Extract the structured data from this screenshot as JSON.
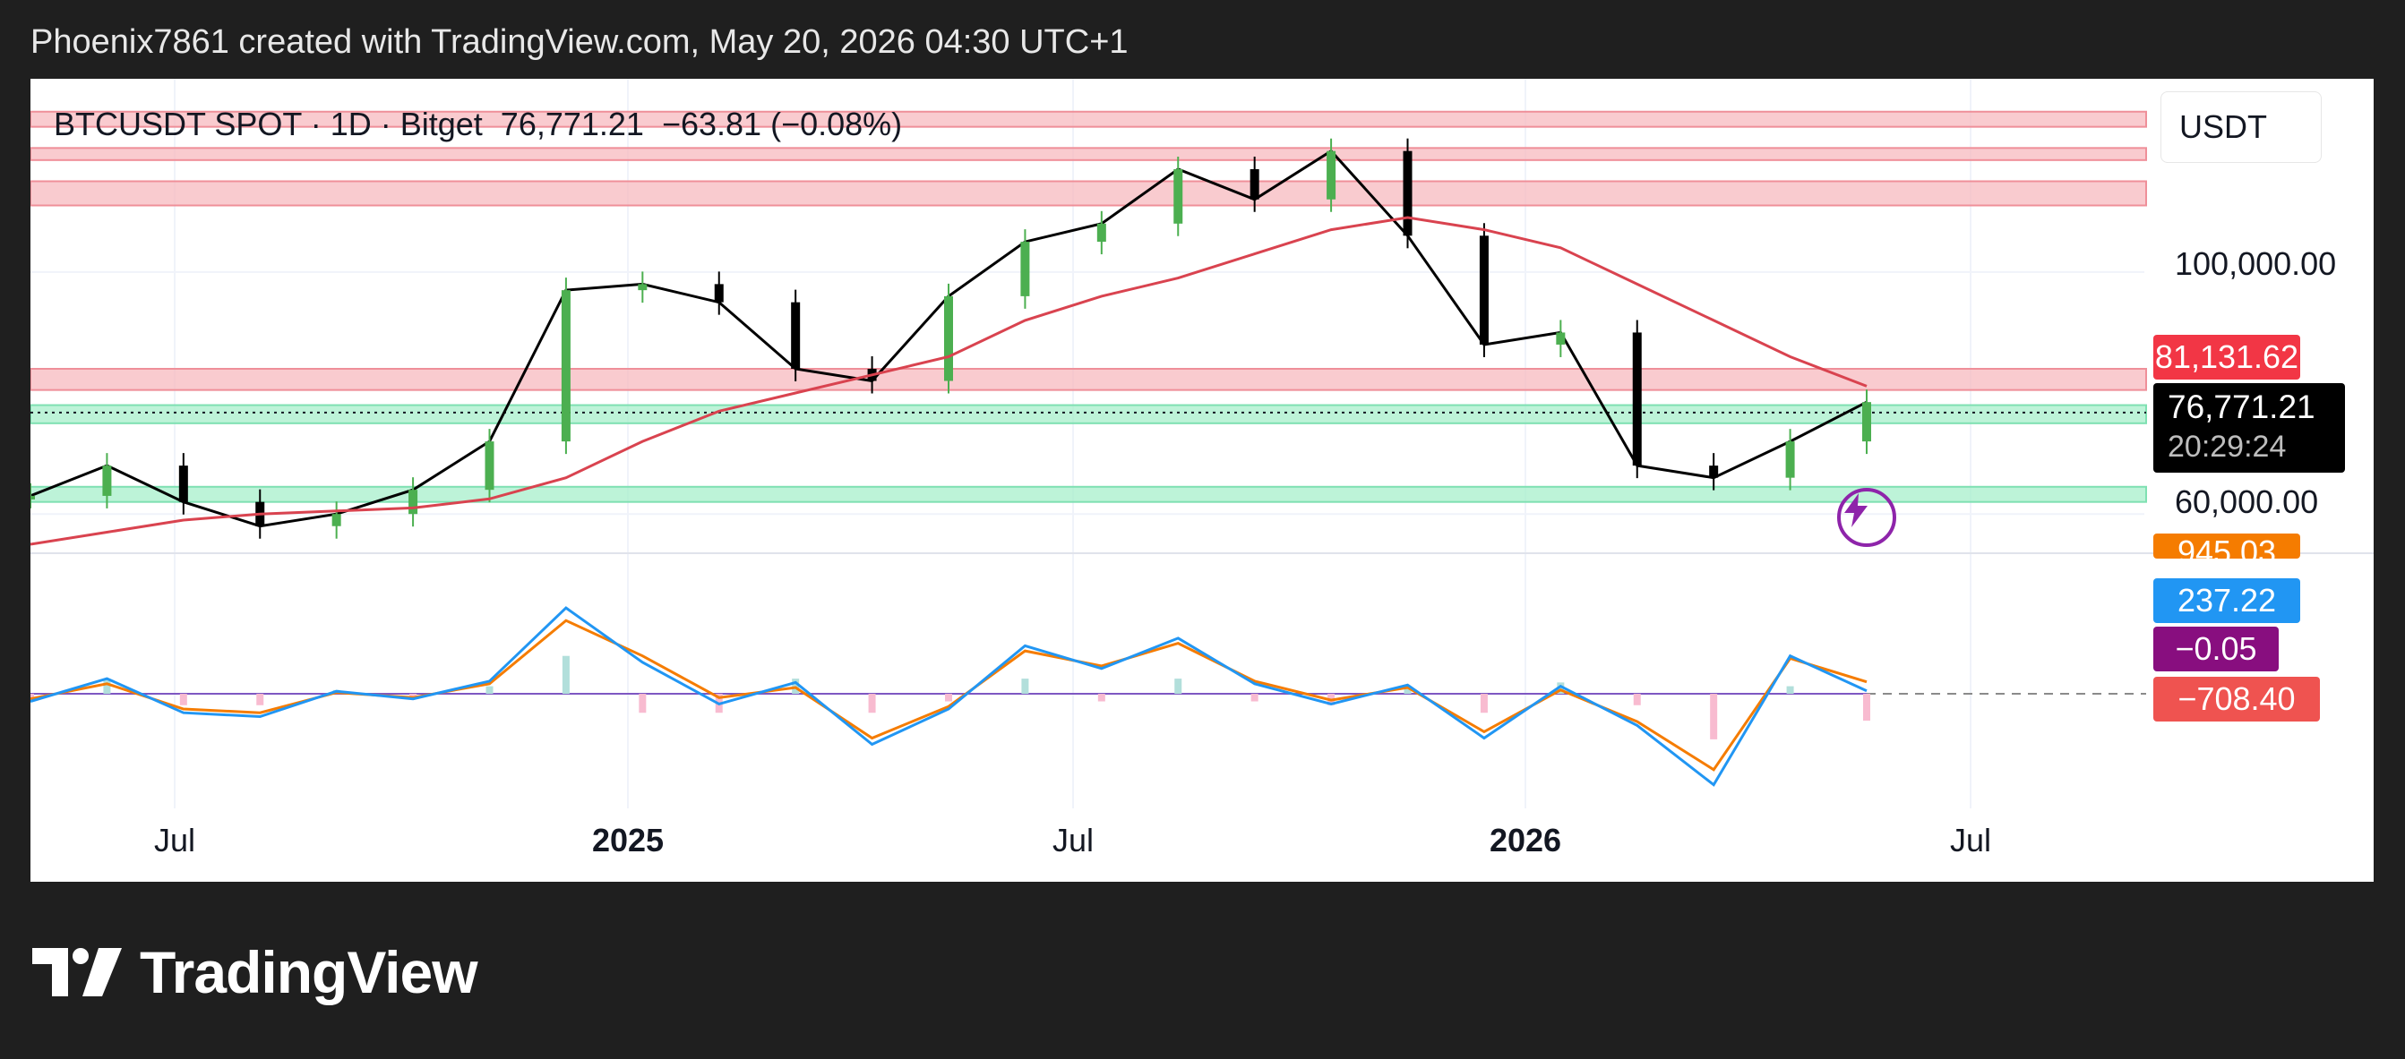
{
  "header": {
    "attribution": "Phoenix7861 created with TradingView.com, May 20, 2026 04:30 UTC+1"
  },
  "symbol": {
    "title": "BTCUSDT SPOT · 1D · Bitget",
    "price": "76,771.21",
    "change": "−63.81 (−0.08%)"
  },
  "currency_button": "USDT",
  "price_axis": {
    "labels": [
      "100,000.00",
      "60,000.00"
    ]
  },
  "tags": {
    "ma_value": "81,131.62",
    "last_price": "76,771.21",
    "countdown": "20:29:24",
    "osc_orange_partial": "945.03",
    "osc_blue": "237.22",
    "osc_purple": "−0.05",
    "osc_red": "−708.40"
  },
  "time_axis": {
    "labels": [
      "Jul",
      "2025",
      "Jul",
      "2026",
      "Jul"
    ]
  },
  "colors": {
    "up_candle": "#4caf50",
    "down_candle": "#000000",
    "ma_line": "#d9434f",
    "resistance_zone": "#f7b9bf",
    "support_zone": "#a7efcb",
    "macd_line": "#2196f3",
    "signal_line": "#f57c00",
    "zero_line": "#7e57c2",
    "tag_red": "#f23645",
    "tag_blue": "#2196f3",
    "tag_purple": "#880e7f",
    "tag_salmon": "#ef5350"
  },
  "icons": {
    "alert": "lightning-bolt-icon",
    "brand": "tradingview-logo-icon"
  },
  "footer": {
    "brand": "TradingView"
  },
  "chart_data": {
    "type": "line",
    "title": "BTCUSDT SPOT · 1D · Bitget",
    "x": [
      "2024-05",
      "2024-06",
      "2024-07",
      "2024-08",
      "2024-09",
      "2024-10",
      "2024-11",
      "2024-12",
      "2025-01",
      "2025-02",
      "2025-03",
      "2025-04",
      "2025-05",
      "2025-06",
      "2025-07",
      "2025-08",
      "2025-09",
      "2025-10",
      "2025-11",
      "2025-12",
      "2026-01",
      "2026-02",
      "2026-03",
      "2026-04",
      "2026-05"
    ],
    "series": [
      {
        "values": [
          63000,
          68000,
          62000,
          58000,
          60000,
          64000,
          72000,
          97000,
          98000,
          95000,
          84000,
          82000,
          96000,
          105000,
          108000,
          117000,
          112000,
          120000,
          106000,
          88000,
          90000,
          68000,
          66000,
          72000,
          78500
        ]
      },
      {
        "values": [
          55000,
          57000,
          59000,
          60000,
          60500,
          61000,
          62500,
          66000,
          72000,
          77000,
          80000,
          83000,
          86000,
          92000,
          96000,
          99000,
          103000,
          107000,
          109000,
          107000,
          104000,
          98000,
          92000,
          86000,
          81131.62
        ]
      }
    ],
    "resistance_zones": [
      [
        124000,
        126500
      ],
      [
        118500,
        120500
      ],
      [
        111000,
        115000
      ],
      [
        80500,
        84000
      ]
    ],
    "support_zones": [
      [
        75000,
        78000
      ],
      [
        62000,
        64500
      ]
    ],
    "last_price": 76771.21,
    "price_ticks": [
      100000,
      60000
    ],
    "ylim": [
      55000,
      127500
    ],
    "oscillator": {
      "x": [
        "2024-05",
        "2024-06",
        "2024-07",
        "2024-08",
        "2024-09",
        "2024-10",
        "2024-11",
        "2024-12",
        "2025-01",
        "2025-02",
        "2025-03",
        "2025-04",
        "2025-05",
        "2025-06",
        "2025-07",
        "2025-08",
        "2025-09",
        "2025-10",
        "2025-11",
        "2025-12",
        "2026-01",
        "2026-02",
        "2026-03",
        "2026-04",
        "2026-05"
      ],
      "series": [
        {
          "values": [
            -600,
            1200,
            -1500,
            -1800,
            200,
            -400,
            1000,
            6800,
            2500,
            -800,
            900,
            -4000,
            -1200,
            3800,
            2000,
            4400,
            800,
            -800,
            700,
            -3500,
            600,
            -2500,
            -7200,
            3000,
            237.22
          ]
        },
        {
          "values": [
            -400,
            800,
            -1200,
            -1500,
            100,
            -300,
            800,
            5800,
            3000,
            -300,
            500,
            -3500,
            -1000,
            3400,
            2200,
            4000,
            1000,
            -500,
            500,
            -3000,
            300,
            -2200,
            -6000,
            2800,
            945.03
          ]
        }
      ],
      "ylim": [
        -8000,
        9000
      ]
    }
  }
}
